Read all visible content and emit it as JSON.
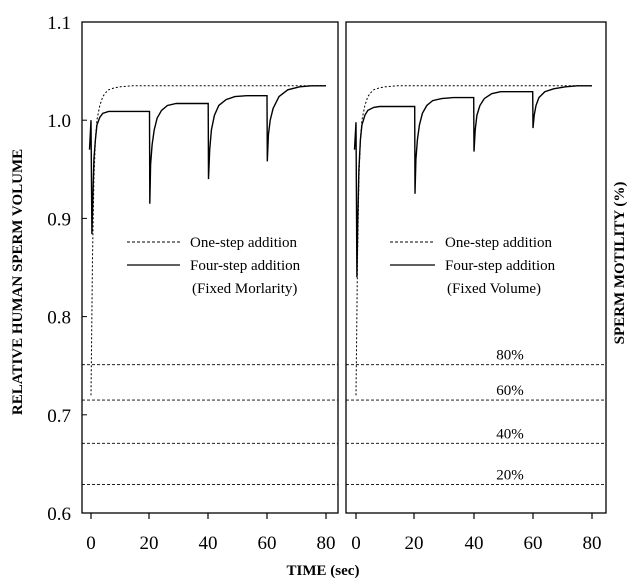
{
  "chart_data": {
    "type": "line",
    "xlabel": "TIME (sec)",
    "ylabel_left": "RELATIVE HUMAN SPERM VOLUME",
    "ylabel_right": "SPERM MOTILITY (%)",
    "ylim": [
      0.6,
      1.1
    ],
    "yticks": [
      "0.6",
      "0.7",
      "0.8",
      "0.9",
      "1.0",
      "1.1"
    ],
    "xlim": [
      -2,
      86
    ],
    "xticks": [
      "0",
      "20",
      "40",
      "60",
      "80"
    ],
    "motility_levels": [
      {
        "label": "80%",
        "y": 0.751
      },
      {
        "label": "60%",
        "y": 0.715
      },
      {
        "label": "40%",
        "y": 0.671
      },
      {
        "label": "20%",
        "y": 0.629
      }
    ],
    "panels": [
      {
        "legend": [
          {
            "text": "One-step addition",
            "style": "dashed"
          },
          {
            "text": "Four-step addition",
            "style": "solid"
          },
          {
            "text": "(Fixed Morlarity)",
            "style": "none"
          }
        ],
        "series": [
          {
            "style": "dashed",
            "x": [
              0,
              0.5,
              1,
              1.5,
              2,
              3,
              4,
              5,
              6,
              8,
              10,
              14,
              20,
              40,
              60,
              80
            ],
            "y": [
              0.72,
              0.86,
              0.94,
              0.98,
              1.0,
              1.015,
              1.024,
              1.028,
              1.031,
              1.033,
              1.034,
              1.035,
              1.035,
              1.035,
              1.035,
              1.035
            ]
          },
          {
            "style": "solid",
            "x": [
              -0.5,
              0,
              0.3,
              0.6,
              1,
              1.5,
              2,
              3,
              4,
              6,
              8,
              12,
              19.9,
              20,
              20.3,
              20.8,
              21.5,
              22.5,
              24,
              26,
              29,
              33,
              39.9,
              40,
              40.4,
              41,
              42,
              43.5,
              46,
              49,
              53,
              59.9,
              60,
              60.4,
              61,
              62,
              64,
              67,
              71,
              75,
              80
            ],
            "y": [
              0.97,
              1.0,
              0.884,
              0.92,
              0.96,
              0.98,
              0.995,
              1.003,
              1.007,
              1.009,
              1.009,
              1.009,
              1.009,
              0.915,
              0.955,
              0.975,
              0.99,
              1.002,
              1.01,
              1.015,
              1.017,
              1.017,
              1.017,
              0.94,
              0.97,
              0.99,
              1.005,
              1.015,
              1.021,
              1.024,
              1.025,
              1.025,
              0.958,
              0.985,
              1.0,
              1.012,
              1.024,
              1.031,
              1.034,
              1.035,
              1.035
            ]
          }
        ]
      },
      {
        "legend": [
          {
            "text": "One-step addition",
            "style": "dashed"
          },
          {
            "text": "Four-step addition",
            "style": "solid"
          },
          {
            "text": "(Fixed Volume)",
            "style": "none"
          }
        ],
        "series": [
          {
            "style": "dashed",
            "x": [
              0,
              0.5,
              1,
              1.5,
              2,
              3,
              4,
              5,
              6,
              8,
              10,
              14,
              20,
              40,
              60,
              80
            ],
            "y": [
              0.72,
              0.86,
              0.94,
              0.98,
              1.0,
              1.015,
              1.024,
              1.028,
              1.031,
              1.033,
              1.034,
              1.035,
              1.035,
              1.035,
              1.035,
              1.035
            ]
          },
          {
            "style": "solid",
            "x": [
              -0.5,
              0,
              0.3,
              0.6,
              1,
              1.5,
              2,
              3,
              4,
              6,
              8,
              12,
              19.9,
              20,
              20.3,
              20.8,
              21.5,
              22.5,
              24,
              26,
              29,
              33,
              39.9,
              40,
              40.4,
              41,
              42,
              43.5,
              46,
              49,
              53,
              59.9,
              60,
              60.4,
              61,
              62,
              64,
              67,
              71,
              75,
              80
            ],
            "y": [
              0.97,
              0.998,
              0.84,
              0.9,
              0.95,
              0.98,
              0.995,
              1.005,
              1.01,
              1.013,
              1.014,
              1.014,
              1.014,
              0.925,
              0.96,
              0.98,
              0.995,
              1.007,
              1.015,
              1.02,
              1.022,
              1.023,
              1.023,
              0.968,
              0.99,
              1.005,
              1.015,
              1.022,
              1.027,
              1.029,
              1.029,
              1.029,
              0.992,
              1.005,
              1.015,
              1.023,
              1.029,
              1.032,
              1.034,
              1.035,
              1.035
            ]
          }
        ]
      }
    ]
  }
}
